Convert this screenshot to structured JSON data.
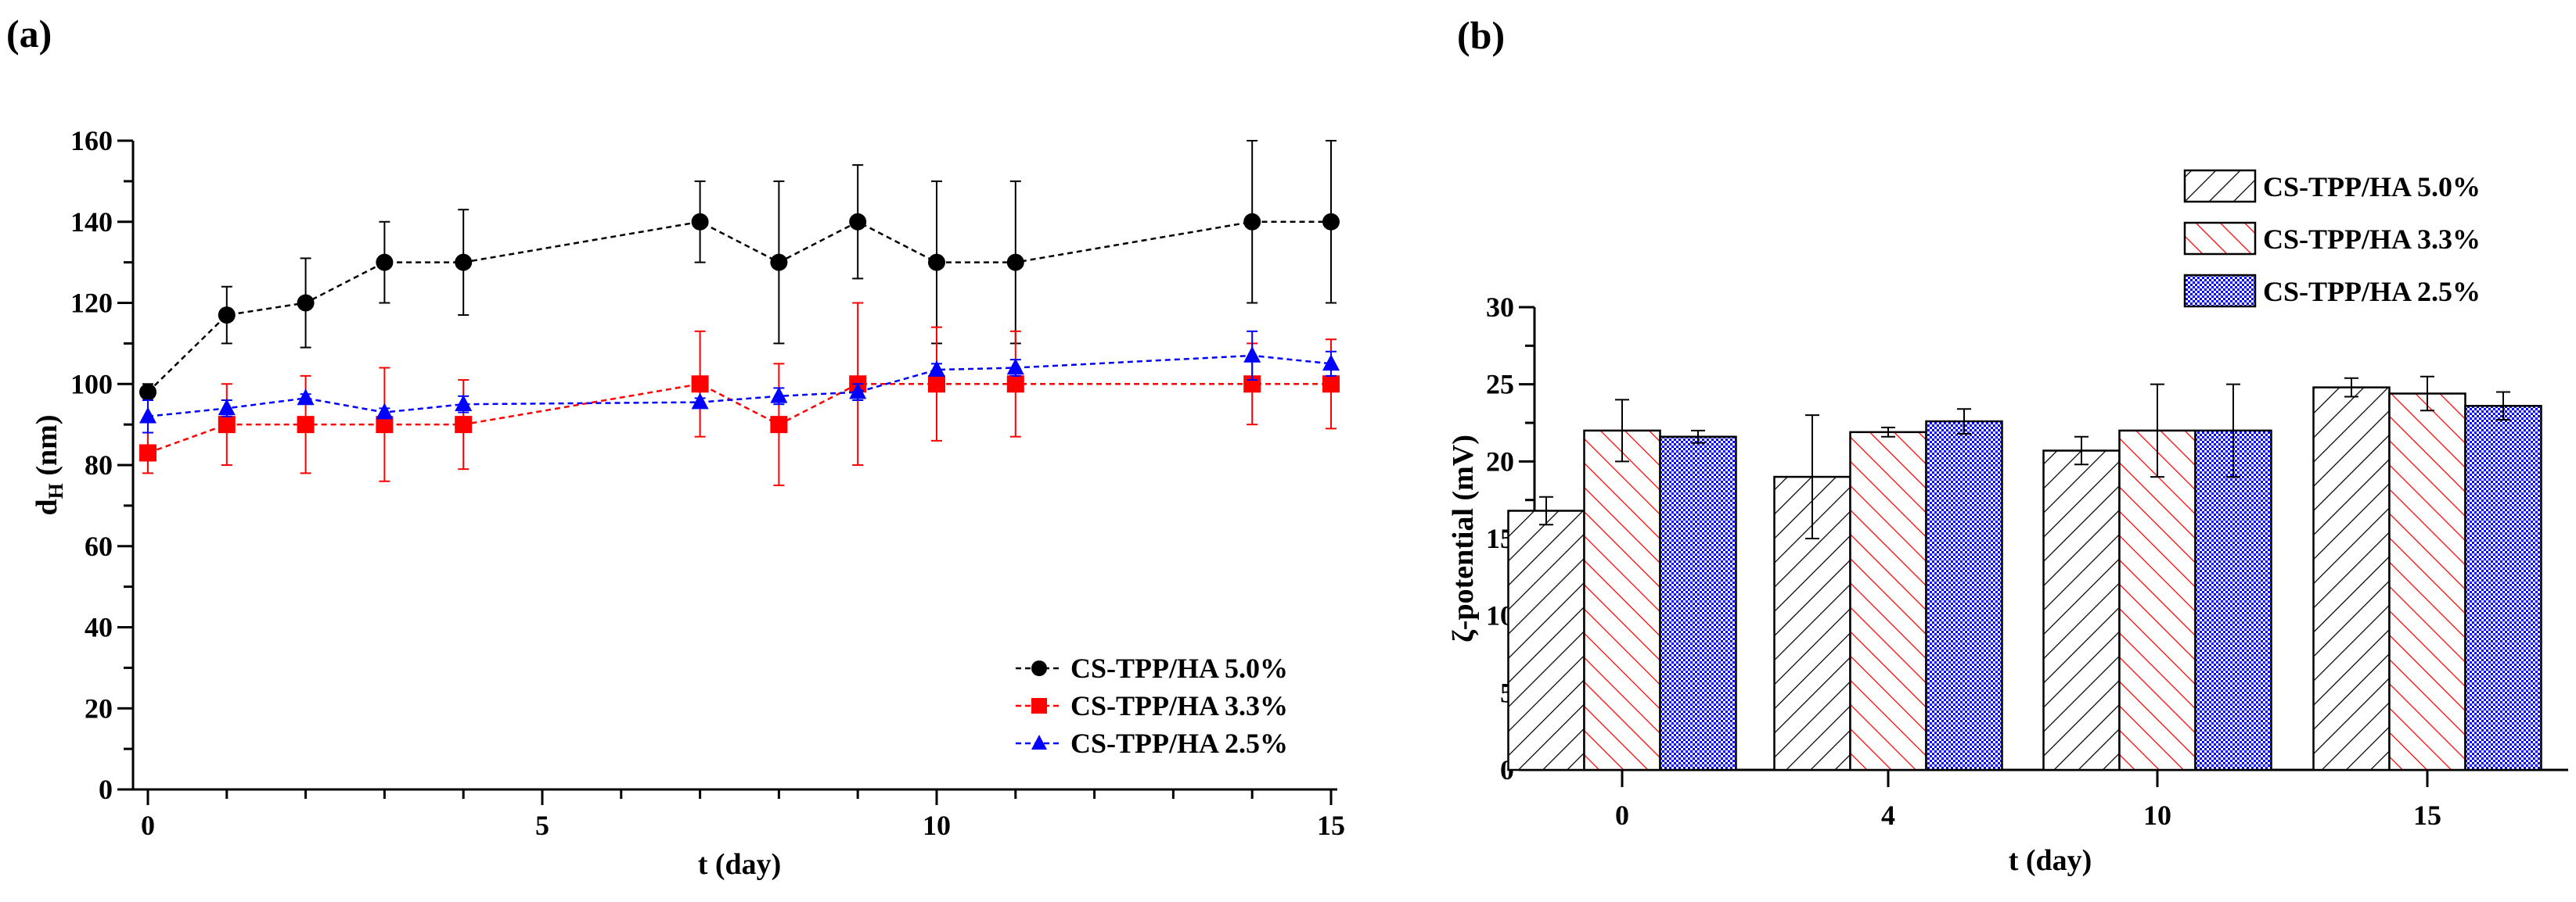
{
  "chart_data": [
    {
      "panel_label": "(a)",
      "type": "line",
      "xlabel": "t (day)",
      "ylabel_main": "d",
      "ylabel_sub": "H",
      "ylabel_unit": " (nm)",
      "xlim": [
        0,
        15
      ],
      "ylim": [
        0,
        160
      ],
      "xticks": [
        0,
        5,
        10,
        15
      ],
      "yticks": [
        0,
        20,
        40,
        60,
        80,
        100,
        120,
        140,
        160
      ],
      "grid": false,
      "legend_position": "bottom-right",
      "x": [
        0,
        1,
        2,
        3,
        4,
        7,
        8,
        9,
        10,
        11,
        14,
        15
      ],
      "series": [
        {
          "name": "CS-TPP/HA 5.0%",
          "color": "#000000",
          "marker": "circle",
          "values": [
            98,
            117,
            120,
            130,
            130,
            140,
            130,
            140,
            130,
            130,
            140,
            140
          ],
          "errors": [
            2,
            7,
            11,
            10,
            13,
            10,
            20,
            14,
            20,
            20,
            20,
            20
          ]
        },
        {
          "name": "CS-TPP/HA 3.3%",
          "color": "#ff0000",
          "marker": "square",
          "values": [
            83,
            90,
            90,
            90,
            90,
            100,
            90,
            100,
            100,
            100,
            100,
            100
          ],
          "errors": [
            5,
            10,
            12,
            14,
            11,
            13,
            15,
            20,
            14,
            13,
            10,
            11
          ]
        },
        {
          "name": "CS-TPP/HA 2.5%",
          "color": "#0000ff",
          "marker": "triangle",
          "values": [
            92,
            94,
            96.5,
            93,
            95,
            95.5,
            97,
            98,
            103.5,
            104,
            107,
            105
          ],
          "errors": [
            4,
            2,
            1,
            1,
            2,
            1,
            2,
            2,
            1.5,
            2,
            6,
            3
          ]
        }
      ]
    },
    {
      "panel_label": "(b)",
      "type": "bar",
      "xlabel": "t (day)",
      "ylabel": "ζ-potential (mV)",
      "ylim": [
        0,
        30
      ],
      "yticks": [
        0,
        5,
        10,
        15,
        20,
        25,
        30
      ],
      "grid": false,
      "legend_position": "top-right",
      "categories": [
        "0",
        "4",
        "10",
        "15"
      ],
      "series": [
        {
          "name": "CS-TPP/HA 5.0%",
          "color": "#000000",
          "pattern": "diagonal-forward",
          "values": [
            16.8,
            19.0,
            20.7,
            24.8
          ],
          "errors": [
            0.9,
            4.0,
            0.9,
            0.6
          ]
        },
        {
          "name": "CS-TPP/HA 3.3%",
          "color": "#ff0000",
          "pattern": "diagonal-back",
          "values": [
            22.0,
            21.9,
            22.0,
            24.4
          ],
          "errors": [
            2.0,
            0.3,
            3.0,
            1.1
          ]
        },
        {
          "name": "CS-TPP/HA 2.5%",
          "color": "#0000ff",
          "pattern": "dots",
          "values": [
            21.6,
            22.6,
            22.0,
            23.6
          ],
          "errors": [
            0.4,
            0.8,
            3.0,
            0.9
          ]
        }
      ]
    }
  ]
}
